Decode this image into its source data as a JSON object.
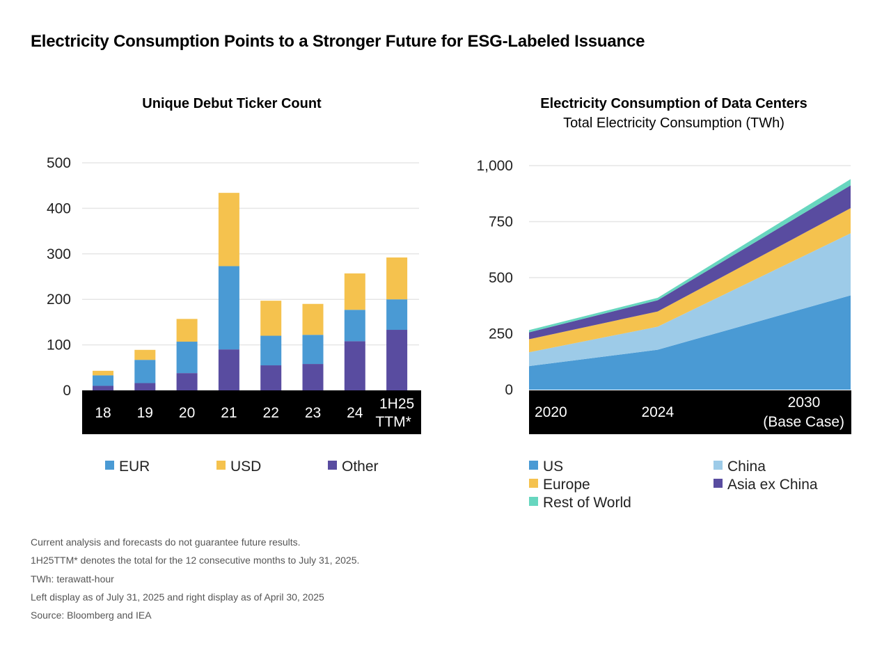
{
  "title": "Electricity Consumption Points to a Stronger Future for ESG-Labeled Issuance",
  "colors": {
    "EUR": "#4a9ad4",
    "USD": "#f5c24e",
    "Other": "#594ca0",
    "US": "#4a9ad4",
    "China": "#9dcbe8",
    "Europe": "#f5c24e",
    "Asia ex China": "#594ca0",
    "Rest of World": "#67d6bf",
    "band": "#000000",
    "grid": "#e6e6e6"
  },
  "chart_data": [
    {
      "type": "bar",
      "stacked": true,
      "title": "Unique Debut Ticker Count",
      "categories": [
        "18",
        "19",
        "20",
        "21",
        "22",
        "23",
        "24",
        "1H25 TTM*"
      ],
      "category_lines": [
        [
          "18"
        ],
        [
          "19"
        ],
        [
          "20"
        ],
        [
          "21"
        ],
        [
          "22"
        ],
        [
          "23"
        ],
        [
          "24"
        ],
        [
          "1H25",
          "TTM*"
        ]
      ],
      "series": [
        {
          "name": "Other",
          "values": [
            10,
            16,
            38,
            90,
            55,
            58,
            108,
            133
          ]
        },
        {
          "name": "EUR",
          "values": [
            23,
            51,
            69,
            183,
            65,
            64,
            69,
            67
          ]
        },
        {
          "name": "USD",
          "values": [
            10,
            22,
            50,
            161,
            77,
            68,
            80,
            92
          ]
        }
      ],
      "legend_order": [
        "EUR",
        "USD",
        "Other"
      ],
      "yticks": [
        "0",
        "100",
        "200",
        "300",
        "400",
        "500"
      ],
      "ytick_values": [
        0,
        100,
        200,
        300,
        400,
        500
      ],
      "ylim": [
        0,
        500
      ],
      "grid": true,
      "legend": "bottom"
    },
    {
      "type": "area",
      "stacked": true,
      "title": "Electricity Consumption of Data Centers",
      "subtitle": "Total Electricity Consumption (TWh)",
      "x": [
        "2020",
        "2024",
        "2030 (Base Case)"
      ],
      "x_values": [
        2020,
        2024,
        2030
      ],
      "x_lines": [
        [
          "2020"
        ],
        [
          "2024"
        ],
        [
          "2030",
          "(Base Case)"
        ]
      ],
      "series": [
        {
          "name": "US",
          "values": [
            105,
            178,
            421
          ]
        },
        {
          "name": "China",
          "values": [
            62,
            103,
            277
          ]
        },
        {
          "name": "Europe",
          "values": [
            58,
            68,
            112
          ]
        },
        {
          "name": "Asia ex China",
          "values": [
            31,
            50,
            102
          ]
        },
        {
          "name": "Rest of World",
          "values": [
            10,
            11,
            28
          ]
        }
      ],
      "legend_order": [
        "US",
        "Europe",
        "Rest of World",
        "China",
        "Asia ex China"
      ],
      "yticks": [
        "0",
        "250",
        "500",
        "750",
        "1,000"
      ],
      "ytick_values": [
        0,
        250,
        500,
        750,
        1000
      ],
      "ylim": [
        0,
        1000
      ],
      "grid": true,
      "legend": "bottom"
    }
  ],
  "notes": [
    "Current analysis and forecasts do not guarantee future results.",
    "1H25TTM* denotes the total for the 12 consecutive months to July 31, 2025.",
    "TWh: terawatt-hour",
    "Left display as of July 31, 2025 and right display as of April 30, 2025",
    "Source: Bloomberg and IEA"
  ]
}
